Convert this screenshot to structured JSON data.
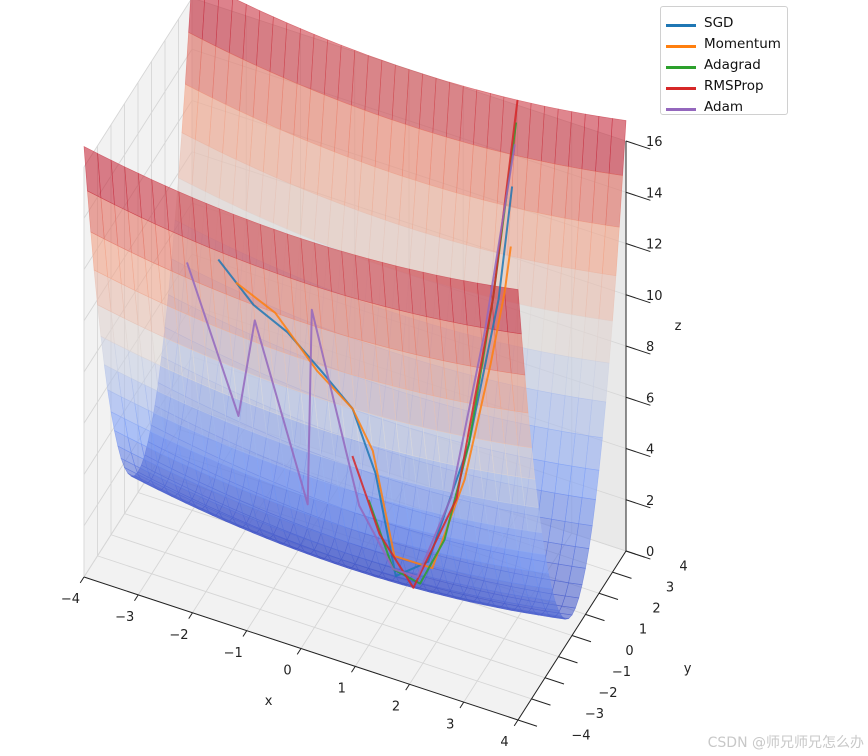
{
  "chart_data": {
    "type": "surface3d",
    "title": "",
    "xlabel": "x",
    "ylabel": "y",
    "zlabel": "z",
    "xlim": [
      -4,
      4
    ],
    "ylim": [
      -4,
      4
    ],
    "zlim": [
      0,
      16
    ],
    "x_ticks": [
      "−4",
      "−3",
      "−2",
      "−1",
      "0",
      "1",
      "2",
      "3",
      "4"
    ],
    "y_ticks": [
      "−4",
      "−3",
      "−2",
      "−1",
      "0",
      "1",
      "2",
      "3",
      "4"
    ],
    "z_ticks": [
      "0",
      "2",
      "4",
      "6",
      "8",
      "10",
      "12",
      "14",
      "16"
    ],
    "surface": {
      "function": "z = x^2/20 + y^2",
      "colormap": "coolwarm",
      "alpha": 0.6,
      "x_range": [
        -4,
        4
      ],
      "y_range": [
        -4,
        4
      ]
    },
    "legend_position": "top-right",
    "series": [
      {
        "name": "SGD",
        "color": "#1f77b4",
        "points": [
          [
            -1.6,
            -3.7
          ],
          [
            -1.0,
            -3.5
          ],
          [
            -0.4,
            -3.4
          ],
          [
            0.2,
            -3.2
          ],
          [
            0.7,
            -3.0
          ],
          [
            1.0,
            -2.5
          ],
          [
            1.0,
            -1.0
          ],
          [
            1.2,
            0.6
          ],
          [
            1.6,
            2.0
          ],
          [
            1.9,
            3.0
          ],
          [
            2.0,
            3.6
          ]
        ]
      },
      {
        "name": "Momentum",
        "color": "#ff7f0e",
        "points": [
          [
            -1.3,
            -3.6
          ],
          [
            -0.6,
            -3.5
          ],
          [
            0.1,
            -3.2
          ],
          [
            0.7,
            -3.0
          ],
          [
            1.0,
            -2.7
          ],
          [
            1.1,
            -1.5
          ],
          [
            1.3,
            0.5
          ],
          [
            1.6,
            1.7
          ],
          [
            1.85,
            2.6
          ],
          [
            2.0,
            3.05
          ],
          [
            2.05,
            3.3
          ]
        ]
      },
      {
        "name": "Adagrad",
        "color": "#2ca02c",
        "points": [
          [
            0.8,
            -2.2
          ],
          [
            1.0,
            -1.2
          ],
          [
            1.2,
            0.0
          ],
          [
            1.4,
            1.0
          ],
          [
            1.6,
            2.0
          ],
          [
            1.8,
            3.0
          ],
          [
            2.0,
            3.9
          ]
        ]
      },
      {
        "name": "RMSProp",
        "color": "#d62728",
        "points": [
          [
            0.6,
            -2.6
          ],
          [
            0.9,
            -1.8
          ],
          [
            1.2,
            -0.5
          ],
          [
            1.5,
            1.5
          ],
          [
            1.8,
            3.0
          ],
          [
            2.0,
            4.0
          ]
        ]
      },
      {
        "name": "Adam",
        "color": "#9467bd",
        "points": [
          [
            -2.2,
            -3.6
          ],
          [
            -1.5,
            -2.6
          ],
          [
            -1.0,
            -3.4
          ],
          [
            -0.4,
            -1.9
          ],
          [
            0.1,
            -3.6
          ],
          [
            0.6,
            -2.1
          ],
          [
            1.0,
            -1.2
          ],
          [
            1.1,
            0.2
          ],
          [
            1.4,
            1.5
          ],
          [
            1.7,
            2.8
          ],
          [
            2.0,
            3.8
          ]
        ]
      }
    ]
  },
  "watermark": "CSDN @师兄师兄怎么办"
}
